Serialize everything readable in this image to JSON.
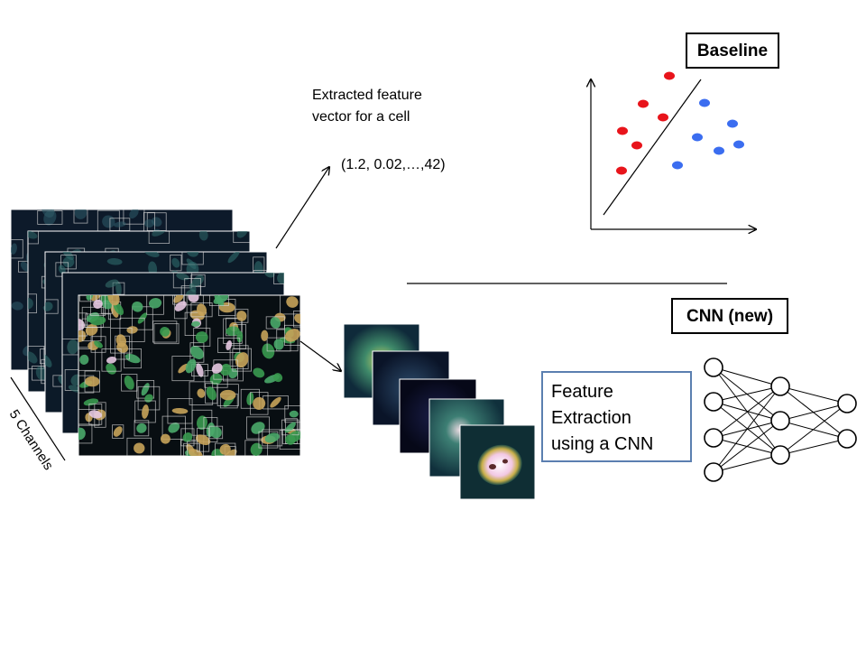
{
  "annotation": {
    "feature_vector_line1": "Extracted feature",
    "feature_vector_line2": "vector for a cell",
    "vector_value": "(1.2, 0.02,…,42)"
  },
  "stack": {
    "channels_label": "5 Channels"
  },
  "baseline": {
    "title": "Baseline",
    "class_colors": [
      "#e8141b",
      "#3b6df0"
    ]
  },
  "cnn": {
    "title": "CNN (new)",
    "feature_box_line1": "Feature",
    "feature_box_line2": "Extraction",
    "feature_box_line3": "using a CNN",
    "box_border_color": "#5b7fb0",
    "layer_sizes": [
      4,
      3,
      2
    ]
  }
}
